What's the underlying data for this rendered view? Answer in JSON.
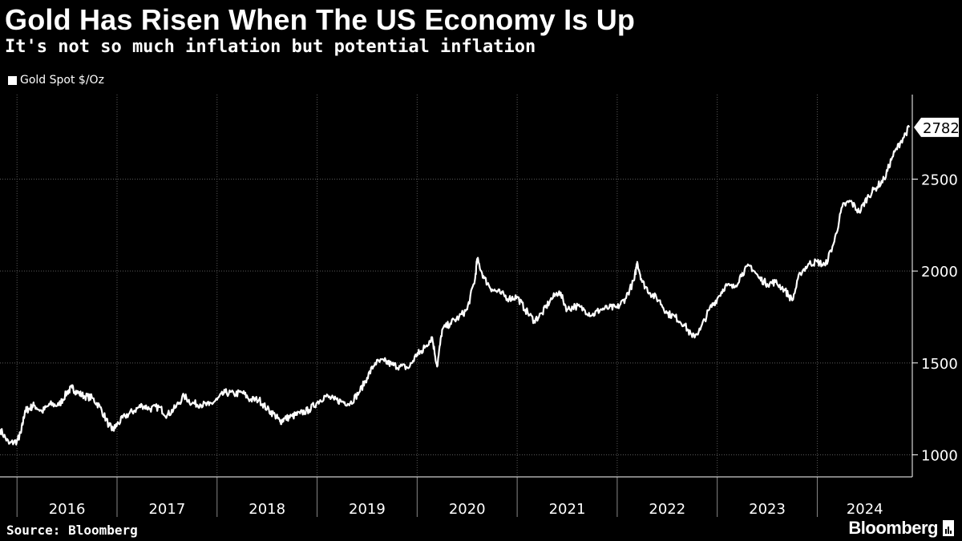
{
  "title": "Gold Has Risen When The US Economy Is Up",
  "subtitle": "It's not so much inflation but potential inflation",
  "source": "Source: Bloomberg",
  "brand": "Bloomberg",
  "colors": {
    "background": "#000000",
    "line": "#ffffff",
    "grid": "#5a5a5a",
    "text": "#ffffff"
  },
  "chart_data": {
    "type": "line",
    "title": "Gold Has Risen When The US Economy Is Up",
    "subtitle": "It's not so much inflation but potential inflation",
    "legend": [
      "Gold Spot $/Oz"
    ],
    "legend_position": "top-left",
    "xlabel": "",
    "ylabel": "",
    "y_axis_side": "right",
    "ylim": [
      880,
      2960
    ],
    "xlim": [
      2015.83,
      2024.95
    ],
    "yticks": [
      1000,
      1500,
      2000,
      2500
    ],
    "xtick_labels": [
      "2016",
      "2017",
      "2018",
      "2019",
      "2020",
      "2021",
      "2022",
      "2023",
      "2024"
    ],
    "year_boundaries": [
      2016,
      2017,
      2018,
      2019,
      2020,
      2021,
      2022,
      2023,
      2024
    ],
    "grid": true,
    "last_value_label": "2782",
    "series": [
      {
        "name": "Gold Spot $/Oz",
        "x": [
          2015.83,
          2015.92,
          2016.0,
          2016.04,
          2016.08,
          2016.12,
          2016.17,
          2016.25,
          2016.33,
          2016.42,
          2016.5,
          2016.55,
          2016.6,
          2016.67,
          2016.75,
          2016.83,
          2016.92,
          2016.96,
          2017.0,
          2017.08,
          2017.17,
          2017.25,
          2017.33,
          2017.42,
          2017.5,
          2017.58,
          2017.67,
          2017.75,
          2017.83,
          2017.92,
          2018.0,
          2018.08,
          2018.17,
          2018.25,
          2018.33,
          2018.42,
          2018.5,
          2018.58,
          2018.63,
          2018.67,
          2018.75,
          2018.83,
          2018.92,
          2019.0,
          2019.08,
          2019.17,
          2019.25,
          2019.33,
          2019.42,
          2019.5,
          2019.58,
          2019.67,
          2019.75,
          2019.83,
          2019.92,
          2020.0,
          2020.04,
          2020.08,
          2020.15,
          2020.2,
          2020.25,
          2020.33,
          2020.42,
          2020.5,
          2020.58,
          2020.6,
          2020.67,
          2020.75,
          2020.83,
          2020.92,
          2021.0,
          2021.08,
          2021.17,
          2021.25,
          2021.33,
          2021.42,
          2021.5,
          2021.58,
          2021.67,
          2021.75,
          2021.83,
          2021.92,
          2022.0,
          2022.08,
          2022.17,
          2022.2,
          2022.25,
          2022.33,
          2022.42,
          2022.5,
          2022.58,
          2022.67,
          2022.75,
          2022.83,
          2022.92,
          2023.0,
          2023.08,
          2023.17,
          2023.25,
          2023.33,
          2023.42,
          2023.5,
          2023.58,
          2023.67,
          2023.75,
          2023.83,
          2023.92,
          2024.0,
          2024.08,
          2024.17,
          2024.25,
          2024.33,
          2024.42,
          2024.5,
          2024.58,
          2024.67,
          2024.75,
          2024.83,
          2024.92
        ],
        "y": [
          1140,
          1060,
          1075,
          1120,
          1240,
          1250,
          1270,
          1235,
          1275,
          1270,
          1340,
          1365,
          1340,
          1320,
          1310,
          1260,
          1160,
          1135,
          1165,
          1210,
          1240,
          1270,
          1250,
          1260,
          1215,
          1255,
          1320,
          1280,
          1275,
          1270,
          1300,
          1340,
          1330,
          1340,
          1300,
          1300,
          1250,
          1215,
          1180,
          1195,
          1210,
          1225,
          1245,
          1285,
          1320,
          1300,
          1290,
          1280,
          1340,
          1420,
          1500,
          1510,
          1490,
          1480,
          1475,
          1550,
          1560,
          1590,
          1640,
          1480,
          1680,
          1715,
          1750,
          1790,
          1960,
          2065,
          1960,
          1900,
          1880,
          1850,
          1860,
          1790,
          1730,
          1770,
          1840,
          1890,
          1790,
          1810,
          1790,
          1760,
          1790,
          1800,
          1800,
          1850,
          1950,
          2050,
          1940,
          1880,
          1840,
          1770,
          1750,
          1710,
          1640,
          1680,
          1790,
          1850,
          1920,
          1910,
          1990,
          2030,
          1960,
          1930,
          1940,
          1900,
          1840,
          1990,
          2040,
          2050,
          2030,
          2160,
          2350,
          2380,
          2320,
          2400,
          2450,
          2500,
          2620,
          2700,
          2782
        ]
      }
    ]
  }
}
